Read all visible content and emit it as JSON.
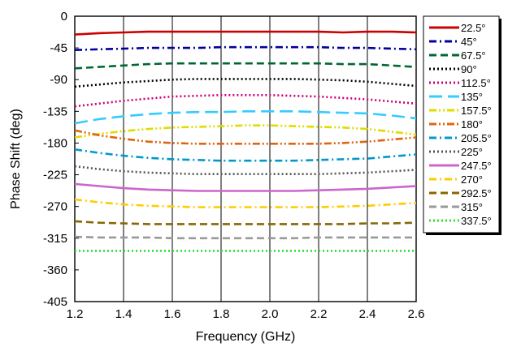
{
  "chart_data": {
    "type": "line",
    "title": "",
    "xlabel": "Frequency (GHz)",
    "ylabel": "Phase Shift (deg)",
    "xlim": [
      1.2,
      2.6
    ],
    "ylim": [
      -405,
      0
    ],
    "xticks": [
      1.2,
      1.4,
      1.6,
      1.8,
      2.0,
      2.2,
      2.4,
      2.6
    ],
    "xtick_labels": [
      "1.2",
      "1.4",
      "1.6",
      "1.8",
      "2.0",
      "2.2",
      "2.4",
      "2.6"
    ],
    "yticks": [
      0,
      -45,
      -90,
      -135,
      -180,
      -225,
      -270,
      -315,
      -360,
      -405
    ],
    "ytick_labels": [
      "0",
      "-45",
      "-90",
      "-135",
      "-180",
      "-225",
      "-270",
      "-315",
      "-360",
      "-405"
    ],
    "grid": "vertical",
    "legend_position": "right",
    "x": [
      1.2,
      1.3,
      1.4,
      1.5,
      1.6,
      1.7,
      1.8,
      1.9,
      2.0,
      2.1,
      2.2,
      2.3,
      2.4,
      2.5,
      2.6
    ],
    "series": [
      {
        "name": "22.5°",
        "color": "#cc0000",
        "dash": "solid",
        "values": [
          -26,
          -24,
          -23,
          -22,
          -22,
          -22,
          -22,
          -22,
          -22,
          -22,
          -22,
          -23,
          -22,
          -22,
          -23
        ]
      },
      {
        "name": "45°",
        "color": "#0000a0",
        "dash": "dashdot",
        "values": [
          -48,
          -47,
          -46,
          -45,
          -45,
          -45,
          -44,
          -44,
          -44,
          -44,
          -44,
          -45,
          -45,
          -46,
          -47
        ]
      },
      {
        "name": "67.5°",
        "color": "#006633",
        "dash": "dash",
        "values": [
          -74,
          -72,
          -70,
          -68,
          -67,
          -67,
          -67,
          -67,
          -67,
          -67,
          -67,
          -68,
          -68,
          -70,
          -72
        ]
      },
      {
        "name": "90°",
        "color": "#000000",
        "dash": "dot",
        "values": [
          -100,
          -97,
          -94,
          -92,
          -90,
          -89,
          -89,
          -89,
          -89,
          -89,
          -90,
          -91,
          -93,
          -96,
          -99
        ]
      },
      {
        "name": "112.5°",
        "color": "#cc0077",
        "dash": "dot",
        "values": [
          -128,
          -124,
          -120,
          -117,
          -114,
          -113,
          -112,
          -112,
          -112,
          -113,
          -114,
          -116,
          -118,
          -121,
          -124
        ]
      },
      {
        "name": "135°",
        "color": "#33ccff",
        "dash": "longdash",
        "values": [
          -152,
          -146,
          -142,
          -139,
          -137,
          -136,
          -136,
          -135,
          -135,
          -135,
          -136,
          -137,
          -138,
          -141,
          -145
        ]
      },
      {
        "name": "157.5°",
        "color": "#dddd00",
        "dash": "dashdotdot",
        "values": [
          -172,
          -167,
          -163,
          -160,
          -158,
          -157,
          -156,
          -155,
          -155,
          -156,
          -157,
          -158,
          -160,
          -164,
          -168
        ]
      },
      {
        "name": "180°",
        "color": "#dd6611",
        "dash": "dashdotdot",
        "values": [
          -162,
          -169,
          -174,
          -178,
          -180,
          -181,
          -181,
          -181,
          -181,
          -181,
          -181,
          -180,
          -178,
          -175,
          -172
        ]
      },
      {
        "name": "205.5°",
        "color": "#0099cc",
        "dash": "dashdot",
        "values": [
          -189,
          -194,
          -198,
          -201,
          -203,
          -204,
          -205,
          -205,
          -205,
          -205,
          -204,
          -203,
          -202,
          -199,
          -196
        ]
      },
      {
        "name": "225°",
        "color": "#555555",
        "dash": "dot",
        "values": [
          -213,
          -217,
          -220,
          -222,
          -223,
          -224,
          -224,
          -224,
          -224,
          -224,
          -224,
          -223,
          -222,
          -220,
          -218
        ]
      },
      {
        "name": "247.5°",
        "color": "#cc66cc",
        "dash": "solid",
        "values": [
          -238,
          -241,
          -244,
          -246,
          -247,
          -248,
          -248,
          -248,
          -248,
          -248,
          -247,
          -246,
          -245,
          -243,
          -241
        ]
      },
      {
        "name": "270°",
        "color": "#ffcc00",
        "dash": "dashdot",
        "values": [
          -260,
          -264,
          -267,
          -269,
          -270,
          -271,
          -271,
          -271,
          -271,
          -271,
          -271,
          -270,
          -269,
          -267,
          -265
        ]
      },
      {
        "name": "292.5°",
        "color": "#886600",
        "dash": "dash",
        "values": [
          -291,
          -293,
          -294,
          -295,
          -295,
          -295,
          -295,
          -295,
          -295,
          -295,
          -295,
          -295,
          -294,
          -294,
          -293
        ]
      },
      {
        "name": "315°",
        "color": "#999999",
        "dash": "dash",
        "values": [
          -313,
          -314,
          -314,
          -314,
          -315,
          -315,
          -315,
          -315,
          -315,
          -315,
          -314,
          -314,
          -314,
          -314,
          -314
        ]
      },
      {
        "name": "337.5°",
        "color": "#33dd33",
        "dash": "dot",
        "values": [
          -333,
          -333,
          -333,
          -333,
          -333,
          -333,
          -333,
          -333,
          -333,
          -333,
          -333,
          -333,
          -333,
          -333,
          -333
        ]
      }
    ]
  }
}
